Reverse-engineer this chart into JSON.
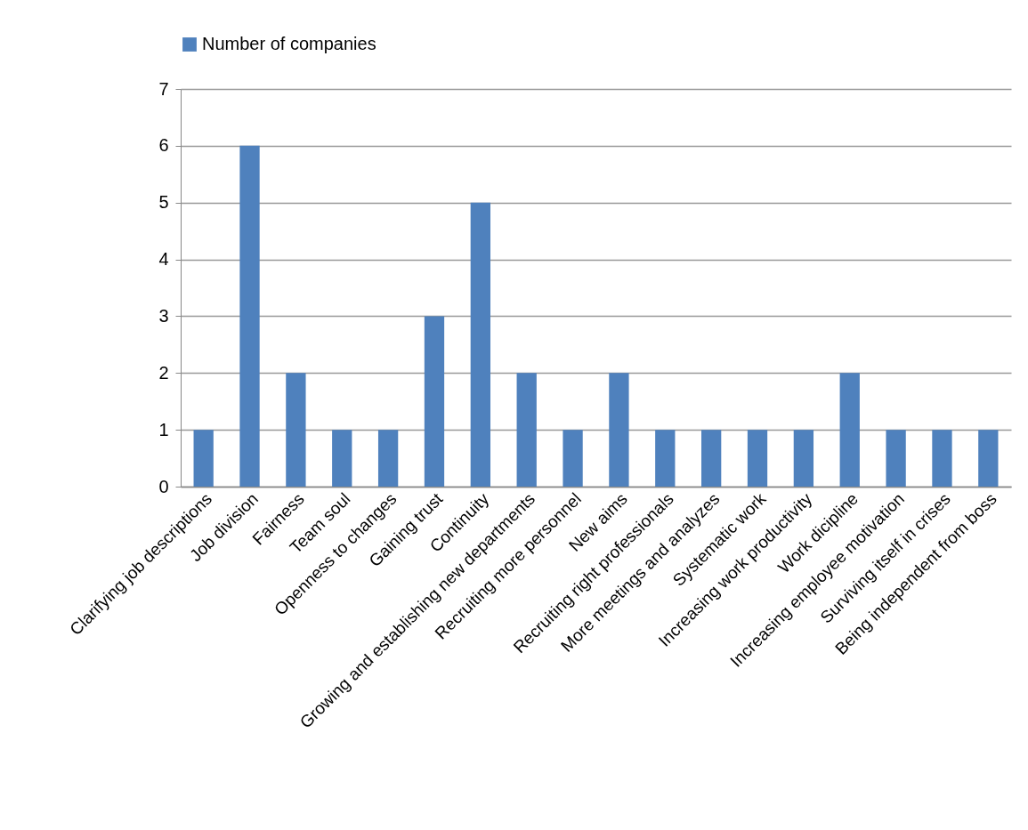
{
  "chart_data": {
    "type": "bar",
    "categories": [
      "Clarifying job descriptions",
      "Job division",
      "Fairness",
      "Team soul",
      "Openness to changes",
      "Gaining trust",
      "Continuity",
      "Growing and establishing new departments",
      "Recruiting more personnel",
      "New aims",
      "Recruiting right professionals",
      "More meetings and analyzes",
      "Systematic work",
      "Increasing work productivity",
      "Work dicipline",
      "Increasing employee motivation",
      "Surviving itself in crises",
      "Being independent from boss"
    ],
    "series": [
      {
        "name": "Number of companies",
        "color": "#4f81bd",
        "values": [
          1,
          6,
          2,
          1,
          1,
          3,
          5,
          2,
          1,
          2,
          1,
          1,
          1,
          1,
          2,
          1,
          1,
          1
        ]
      }
    ],
    "ylim": [
      0,
      7
    ],
    "yticks": [
      0,
      1,
      2,
      3,
      4,
      5,
      6,
      7
    ],
    "grid": "y",
    "legend": "top"
  }
}
